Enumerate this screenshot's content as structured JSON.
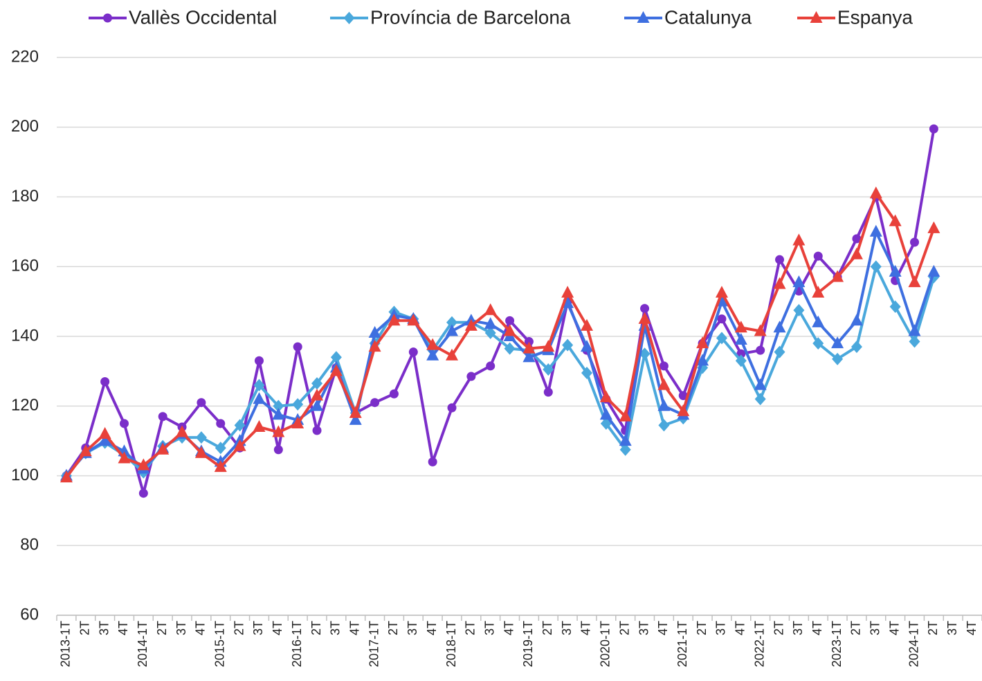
{
  "chart_data": {
    "type": "line",
    "categories": [
      "2013-1T",
      "2T",
      "3T",
      "4T",
      "2014-1T",
      "2T",
      "3T",
      "4T",
      "2015-1T",
      "2T",
      "3T",
      "4T",
      "2016-1T",
      "2T",
      "3T",
      "4T",
      "2017-1T",
      "2T",
      "3T",
      "4T",
      "2018-1T",
      "2T",
      "3T",
      "4T",
      "2019-1T",
      "2T",
      "3T",
      "4T",
      "2020-1T",
      "2T",
      "3T",
      "4T",
      "2021-1T",
      "2T",
      "3T",
      "4T",
      "2022-1T",
      "2T",
      "3T",
      "4T",
      "2023-1T",
      "2T",
      "3T",
      "4T",
      "2024-1T",
      "2T",
      "3T",
      "4T"
    ],
    "series": [
      {
        "name": "Vallès Occidental",
        "color": "#7b2ec9",
        "marker": "circle",
        "values": [
          100,
          108,
          127,
          115,
          95,
          117,
          114,
          121,
          115,
          108,
          133,
          107.5,
          137,
          113,
          131,
          118,
          121,
          123.5,
          135.5,
          104,
          119.5,
          128.5,
          131.5,
          144.5,
          138.5,
          124,
          150,
          136,
          122,
          113,
          148,
          131.5,
          123,
          138,
          145,
          135,
          136,
          162,
          153,
          163,
          157,
          168,
          180,
          156,
          167,
          199.5,
          null,
          null
        ]
      },
      {
        "name": "Província de Barcelona",
        "color": "#4aa8dc",
        "marker": "diamond",
        "values": [
          100,
          106.5,
          109.5,
          106,
          101,
          108.5,
          111,
          111,
          108,
          114.5,
          126,
          120,
          120.5,
          126.5,
          134,
          118,
          138,
          147,
          145,
          136,
          144,
          144,
          141,
          136.5,
          136,
          130.5,
          137.5,
          129.5,
          115,
          107.5,
          135,
          114.5,
          116.5,
          131,
          139.5,
          133,
          122,
          135.5,
          147.5,
          138,
          133.5,
          137,
          160,
          148.5,
          138.5,
          157,
          null,
          null
        ]
      },
      {
        "name": "Catalunya",
        "color": "#3e6fe0",
        "marker": "triangle",
        "values": [
          100,
          106.5,
          110,
          107,
          102,
          108,
          112,
          107,
          104,
          110,
          122,
          117.5,
          116,
          120,
          131,
          116,
          141,
          146,
          145,
          134.5,
          141.5,
          144.5,
          143.5,
          140,
          134,
          136,
          149.5,
          137,
          117.5,
          110,
          143,
          120,
          117.5,
          133,
          150,
          139,
          126,
          142.5,
          155.5,
          144,
          138,
          144.5,
          170,
          158.5,
          141.5,
          158.5,
          null,
          null
        ]
      },
      {
        "name": "Espanya",
        "color": "#e8413a",
        "marker": "triangle",
        "values": [
          99.5,
          107,
          112,
          105,
          103,
          107.5,
          112.5,
          106.5,
          102.5,
          108.5,
          114,
          112.5,
          115,
          123,
          130,
          118,
          137,
          144.5,
          144.5,
          137.5,
          134.5,
          143,
          147.5,
          141.5,
          136.5,
          137,
          152.5,
          143,
          122.5,
          117,
          145,
          126,
          118.5,
          138,
          152.5,
          142.5,
          141.5,
          155,
          167.5,
          152.5,
          157,
          163.5,
          181,
          173,
          155.5,
          171,
          null,
          null
        ]
      }
    ],
    "ylim": [
      60,
      220
    ],
    "yticks": [
      60,
      80,
      100,
      120,
      140,
      160,
      180,
      200,
      220
    ],
    "grid": true,
    "legend": "top"
  }
}
